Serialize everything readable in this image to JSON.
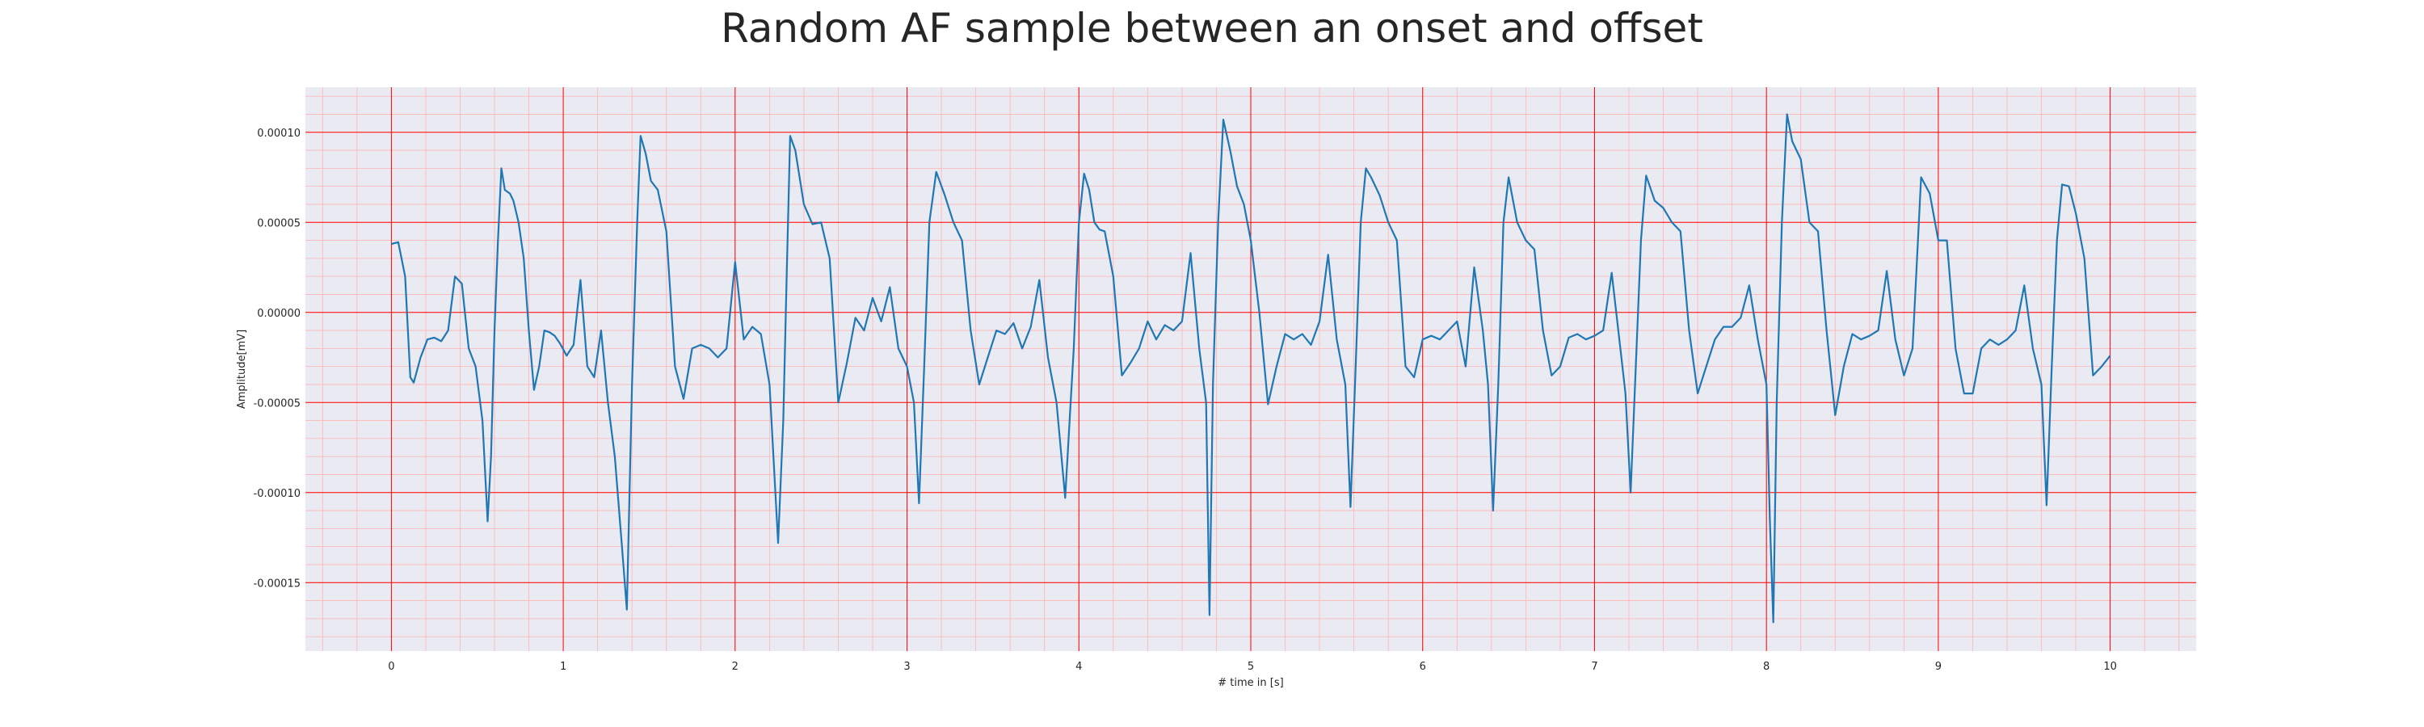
{
  "chart_data": {
    "type": "line",
    "title": "Random AF sample between an onset and offset",
    "xlabel": "# time in [s]",
    "ylabel": "Amplitude[mV]",
    "xlim": [
      -0.5,
      10.5
    ],
    "ylim": [
      -0.000188,
      0.000125
    ],
    "x_ticks": [
      0,
      1,
      2,
      3,
      4,
      5,
      6,
      7,
      8,
      9,
      10
    ],
    "x_tick_labels": [
      "0",
      "1",
      "2",
      "3",
      "4",
      "5",
      "6",
      "7",
      "8",
      "9",
      "10"
    ],
    "y_ticks": [
      0.0001,
      5e-05,
      0.0,
      -5e-05,
      -0.0001,
      -0.00015
    ],
    "y_tick_labels": [
      "0.00010",
      "0.00005",
      "0.00000",
      "-0.00005",
      "-0.00010",
      "-0.00015"
    ],
    "grid": true,
    "minor_grid": true,
    "colors": {
      "line": "#1f77b4",
      "plot_background": "#eaeaf2",
      "major_grid": "#ff0000",
      "minor_grid": "#ffb3b3"
    },
    "series": [
      {
        "x": [
          0.0,
          0.04,
          0.08,
          0.11,
          0.13,
          0.17,
          0.21,
          0.25,
          0.29,
          0.33,
          0.37,
          0.41,
          0.45,
          0.49,
          0.53,
          0.56,
          0.58,
          0.6,
          0.62,
          0.64,
          0.66,
          0.69,
          0.71,
          0.74,
          0.77,
          0.8,
          0.83,
          0.86,
          0.89,
          0.92,
          0.95,
          0.98,
          1.02,
          1.06,
          1.1,
          1.14,
          1.18,
          1.22,
          1.26,
          1.3,
          1.34,
          1.37,
          1.4,
          1.43,
          1.45,
          1.48,
          1.51,
          1.55,
          1.6,
          1.65,
          1.7,
          1.75,
          1.8,
          1.85,
          1.9,
          1.95,
          2.0,
          2.05,
          2.1,
          2.15,
          2.2,
          2.25,
          2.28,
          2.3,
          2.32,
          2.35,
          2.4,
          2.45,
          2.5,
          2.55,
          2.6,
          2.65,
          2.7,
          2.75,
          2.8,
          2.85,
          2.9,
          2.95,
          3.0,
          3.04,
          3.07,
          3.1,
          3.13,
          3.17,
          3.22,
          3.27,
          3.32,
          3.37,
          3.42,
          3.47,
          3.52,
          3.57,
          3.62,
          3.67,
          3.72,
          3.77,
          3.82,
          3.87,
          3.92,
          3.97,
          4.0,
          4.03,
          4.06,
          4.09,
          4.12,
          4.15,
          4.2,
          4.25,
          4.3,
          4.35,
          4.4,
          4.45,
          4.5,
          4.55,
          4.6,
          4.65,
          4.7,
          4.74,
          4.76,
          4.78,
          4.81,
          4.84,
          4.88,
          4.92,
          4.96,
          5.0,
          5.05,
          5.1,
          5.15,
          5.2,
          5.25,
          5.3,
          5.35,
          5.4,
          5.45,
          5.5,
          5.55,
          5.58,
          5.61,
          5.64,
          5.67,
          5.7,
          5.75,
          5.8,
          5.85,
          5.9,
          5.95,
          6.0,
          6.05,
          6.1,
          6.15,
          6.2,
          6.25,
          6.3,
          6.35,
          6.38,
          6.41,
          6.44,
          6.47,
          6.5,
          6.55,
          6.6,
          6.65,
          6.7,
          6.75,
          6.8,
          6.85,
          6.9,
          6.95,
          7.0,
          7.05,
          7.1,
          7.15,
          7.18,
          7.21,
          7.24,
          7.27,
          7.3,
          7.35,
          7.4,
          7.45,
          7.5,
          7.55,
          7.6,
          7.65,
          7.7,
          7.75,
          7.8,
          7.85,
          7.9,
          7.95,
          8.0,
          8.02,
          8.04,
          8.06,
          8.09,
          8.12,
          8.15,
          8.2,
          8.25,
          8.3,
          8.35,
          8.4,
          8.45,
          8.5,
          8.55,
          8.6,
          8.65,
          8.7,
          8.75,
          8.8,
          8.85,
          8.9,
          8.95,
          9.0,
          9.05,
          9.1,
          9.15,
          9.2,
          9.25,
          9.3,
          9.35,
          9.4,
          9.45,
          9.5,
          9.55,
          9.6,
          9.63,
          9.66,
          9.69,
          9.72,
          9.76,
          9.8,
          9.85,
          9.9,
          9.95,
          10.0
        ],
        "values": [
          3.8e-05,
          3.9e-05,
          2e-05,
          -3.6e-05,
          -3.9e-05,
          -2.5e-05,
          -1.5e-05,
          -1.4e-05,
          -1.6e-05,
          -1e-05,
          2e-05,
          1.6e-05,
          -2e-05,
          -3e-05,
          -6e-05,
          -0.000116,
          -8e-05,
          -1e-05,
          4e-05,
          8e-05,
          6.8e-05,
          6.6e-05,
          6.2e-05,
          5e-05,
          3e-05,
          -1e-05,
          -4.3e-05,
          -3e-05,
          -1e-05,
          -1.1e-05,
          -1.3e-05,
          -1.7e-05,
          -2.4e-05,
          -1.8e-05,
          1.8e-05,
          -3e-05,
          -3.6e-05,
          -1e-05,
          -5e-05,
          -8e-05,
          -0.000128,
          -0.000165,
          -4e-05,
          5e-05,
          9.8e-05,
          8.8e-05,
          7.3e-05,
          6.8e-05,
          4.5e-05,
          -3e-05,
          -4.8e-05,
          -2e-05,
          -1.8e-05,
          -2e-05,
          -2.5e-05,
          -2e-05,
          2.8e-05,
          -1.5e-05,
          -8e-06,
          -1.2e-05,
          -4e-05,
          -0.000128,
          -6e-05,
          2e-05,
          9.8e-05,
          9e-05,
          6e-05,
          4.9e-05,
          5e-05,
          3e-05,
          -5e-05,
          -2.8e-05,
          -3e-06,
          -1e-05,
          8e-06,
          -5e-06,
          1.4e-05,
          -2e-05,
          -3e-05,
          -5e-05,
          -0.000106,
          -3e-05,
          5e-05,
          7.8e-05,
          6.5e-05,
          5e-05,
          4e-05,
          -1e-05,
          -4e-05,
          -2.5e-05,
          -1e-05,
          -1.2e-05,
          -6e-06,
          -2e-05,
          -8e-06,
          1.8e-05,
          -2.5e-05,
          -5e-05,
          -0.000103,
          -2e-05,
          5e-05,
          7.7e-05,
          6.8e-05,
          5e-05,
          4.6e-05,
          4.5e-05,
          2e-05,
          -3.5e-05,
          -2.8e-05,
          -2e-05,
          -5e-06,
          -1.5e-05,
          -7e-06,
          -1e-05,
          -5e-06,
          3.3e-05,
          -2e-05,
          -5e-05,
          -0.000168,
          -4e-05,
          5e-05,
          0.000107,
          9e-05,
          7e-05,
          6e-05,
          4e-05,
          0.0,
          -5.1e-05,
          -3e-05,
          -1.2e-05,
          -1.5e-05,
          -1.2e-05,
          -1.8e-05,
          -5e-06,
          3.2e-05,
          -1.5e-05,
          -4e-05,
          -0.000108,
          -3e-05,
          5e-05,
          8e-05,
          7.5e-05,
          6.5e-05,
          5e-05,
          4e-05,
          -3e-05,
          -3.6e-05,
          -1.5e-05,
          -1.3e-05,
          -1.5e-05,
          -1e-05,
          -5e-06,
          -3e-05,
          2.5e-05,
          -1e-05,
          -4e-05,
          -0.00011,
          -4e-05,
          5e-05,
          7.5e-05,
          5e-05,
          4e-05,
          3.5e-05,
          -1e-05,
          -3.5e-05,
          -3e-05,
          -1.4e-05,
          -1.2e-05,
          -1.5e-05,
          -1.3e-05,
          -1e-05,
          2.2e-05,
          -2e-05,
          -4.5e-05,
          -0.0001,
          -3e-05,
          4e-05,
          7.6e-05,
          6.2e-05,
          5.8e-05,
          5e-05,
          4.5e-05,
          -1e-05,
          -4.5e-05,
          -3e-05,
          -1.5e-05,
          -8e-06,
          -8e-06,
          -3e-06,
          1.5e-05,
          -1.5e-05,
          -4e-05,
          -0.000115,
          -0.000172,
          -5e-05,
          5e-05,
          0.00011,
          9.5e-05,
          8.5e-05,
          5e-05,
          4.5e-05,
          -1e-05,
          -5.7e-05,
          -3e-05,
          -1.2e-05,
          -1.5e-05,
          -1.3e-05,
          -1e-05,
          2.3e-05,
          -1.5e-05,
          -3.5e-05,
          -2e-05,
          7.5e-05,
          6.6e-05,
          4e-05,
          4e-05,
          -2e-05,
          -4.5e-05,
          -4.5e-05,
          -2e-05,
          -1.5e-05,
          -1.8e-05,
          -1.5e-05,
          -1e-05,
          1.5e-05,
          -2e-05,
          -4e-05,
          -0.000107,
          -3e-05,
          4e-05,
          7.1e-05,
          7e-05,
          5.5e-05,
          3e-05,
          -3.5e-05,
          -3e-05,
          -2.4e-05
        ]
      }
    ]
  }
}
